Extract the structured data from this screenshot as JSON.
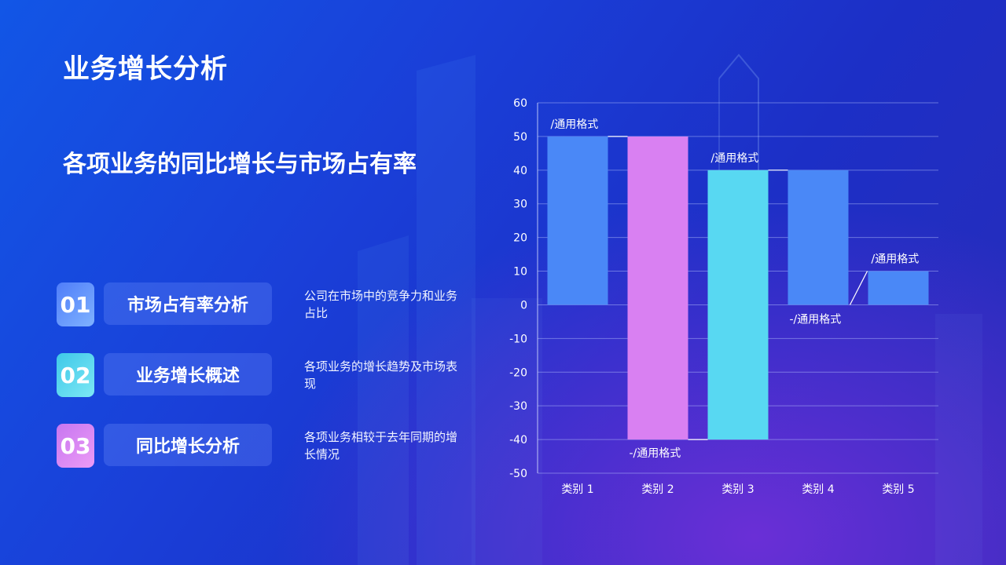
{
  "header": {
    "title": "业务增长分析",
    "subtitle": "各项业务的同比增长与市场占有率"
  },
  "items": [
    {
      "num": "01",
      "label": "市场占有率分析",
      "desc": "公司在市场中的竞争力和业务占比",
      "color_from": "#4f7df9",
      "color_to": "#7fb2ff"
    },
    {
      "num": "02",
      "label": "业务增长概述",
      "desc": "各项业务的增长趋势及市场表现",
      "color_from": "#3ec8e8",
      "color_to": "#7de8f5"
    },
    {
      "num": "03",
      "label": "同比增长分析",
      "desc": "各项业务相较于去年同期的增长情况",
      "color_from": "#c776f0",
      "color_to": "#ec9bf6"
    }
  ],
  "chart_data": {
    "type": "bar",
    "categories": [
      "类别 1",
      "类别 2",
      "类别 3",
      "类别 4",
      "类别 5"
    ],
    "values": [
      50,
      -40,
      40,
      0,
      10
    ],
    "bar_ranges": [
      [
        0,
        50
      ],
      [
        -40,
        50
      ],
      [
        -40,
        40
      ],
      [
        0,
        40
      ],
      [
        0,
        10
      ]
    ],
    "bar_colors": [
      "#4a88f7",
      "#d980f2",
      "#58d8f2",
      "#4a88f7",
      "#4a88f7"
    ],
    "data_labels": [
      "/通用格式",
      "-/通用格式",
      "/通用格式",
      "-/通用格式",
      "/通用格式"
    ],
    "ylim": [
      -50,
      60
    ],
    "yticks": [
      60,
      50,
      40,
      30,
      20,
      10,
      0,
      -10,
      -20,
      -30,
      -40,
      -50
    ],
    "grid": true,
    "title": "",
    "xlabel": "",
    "ylabel": ""
  }
}
